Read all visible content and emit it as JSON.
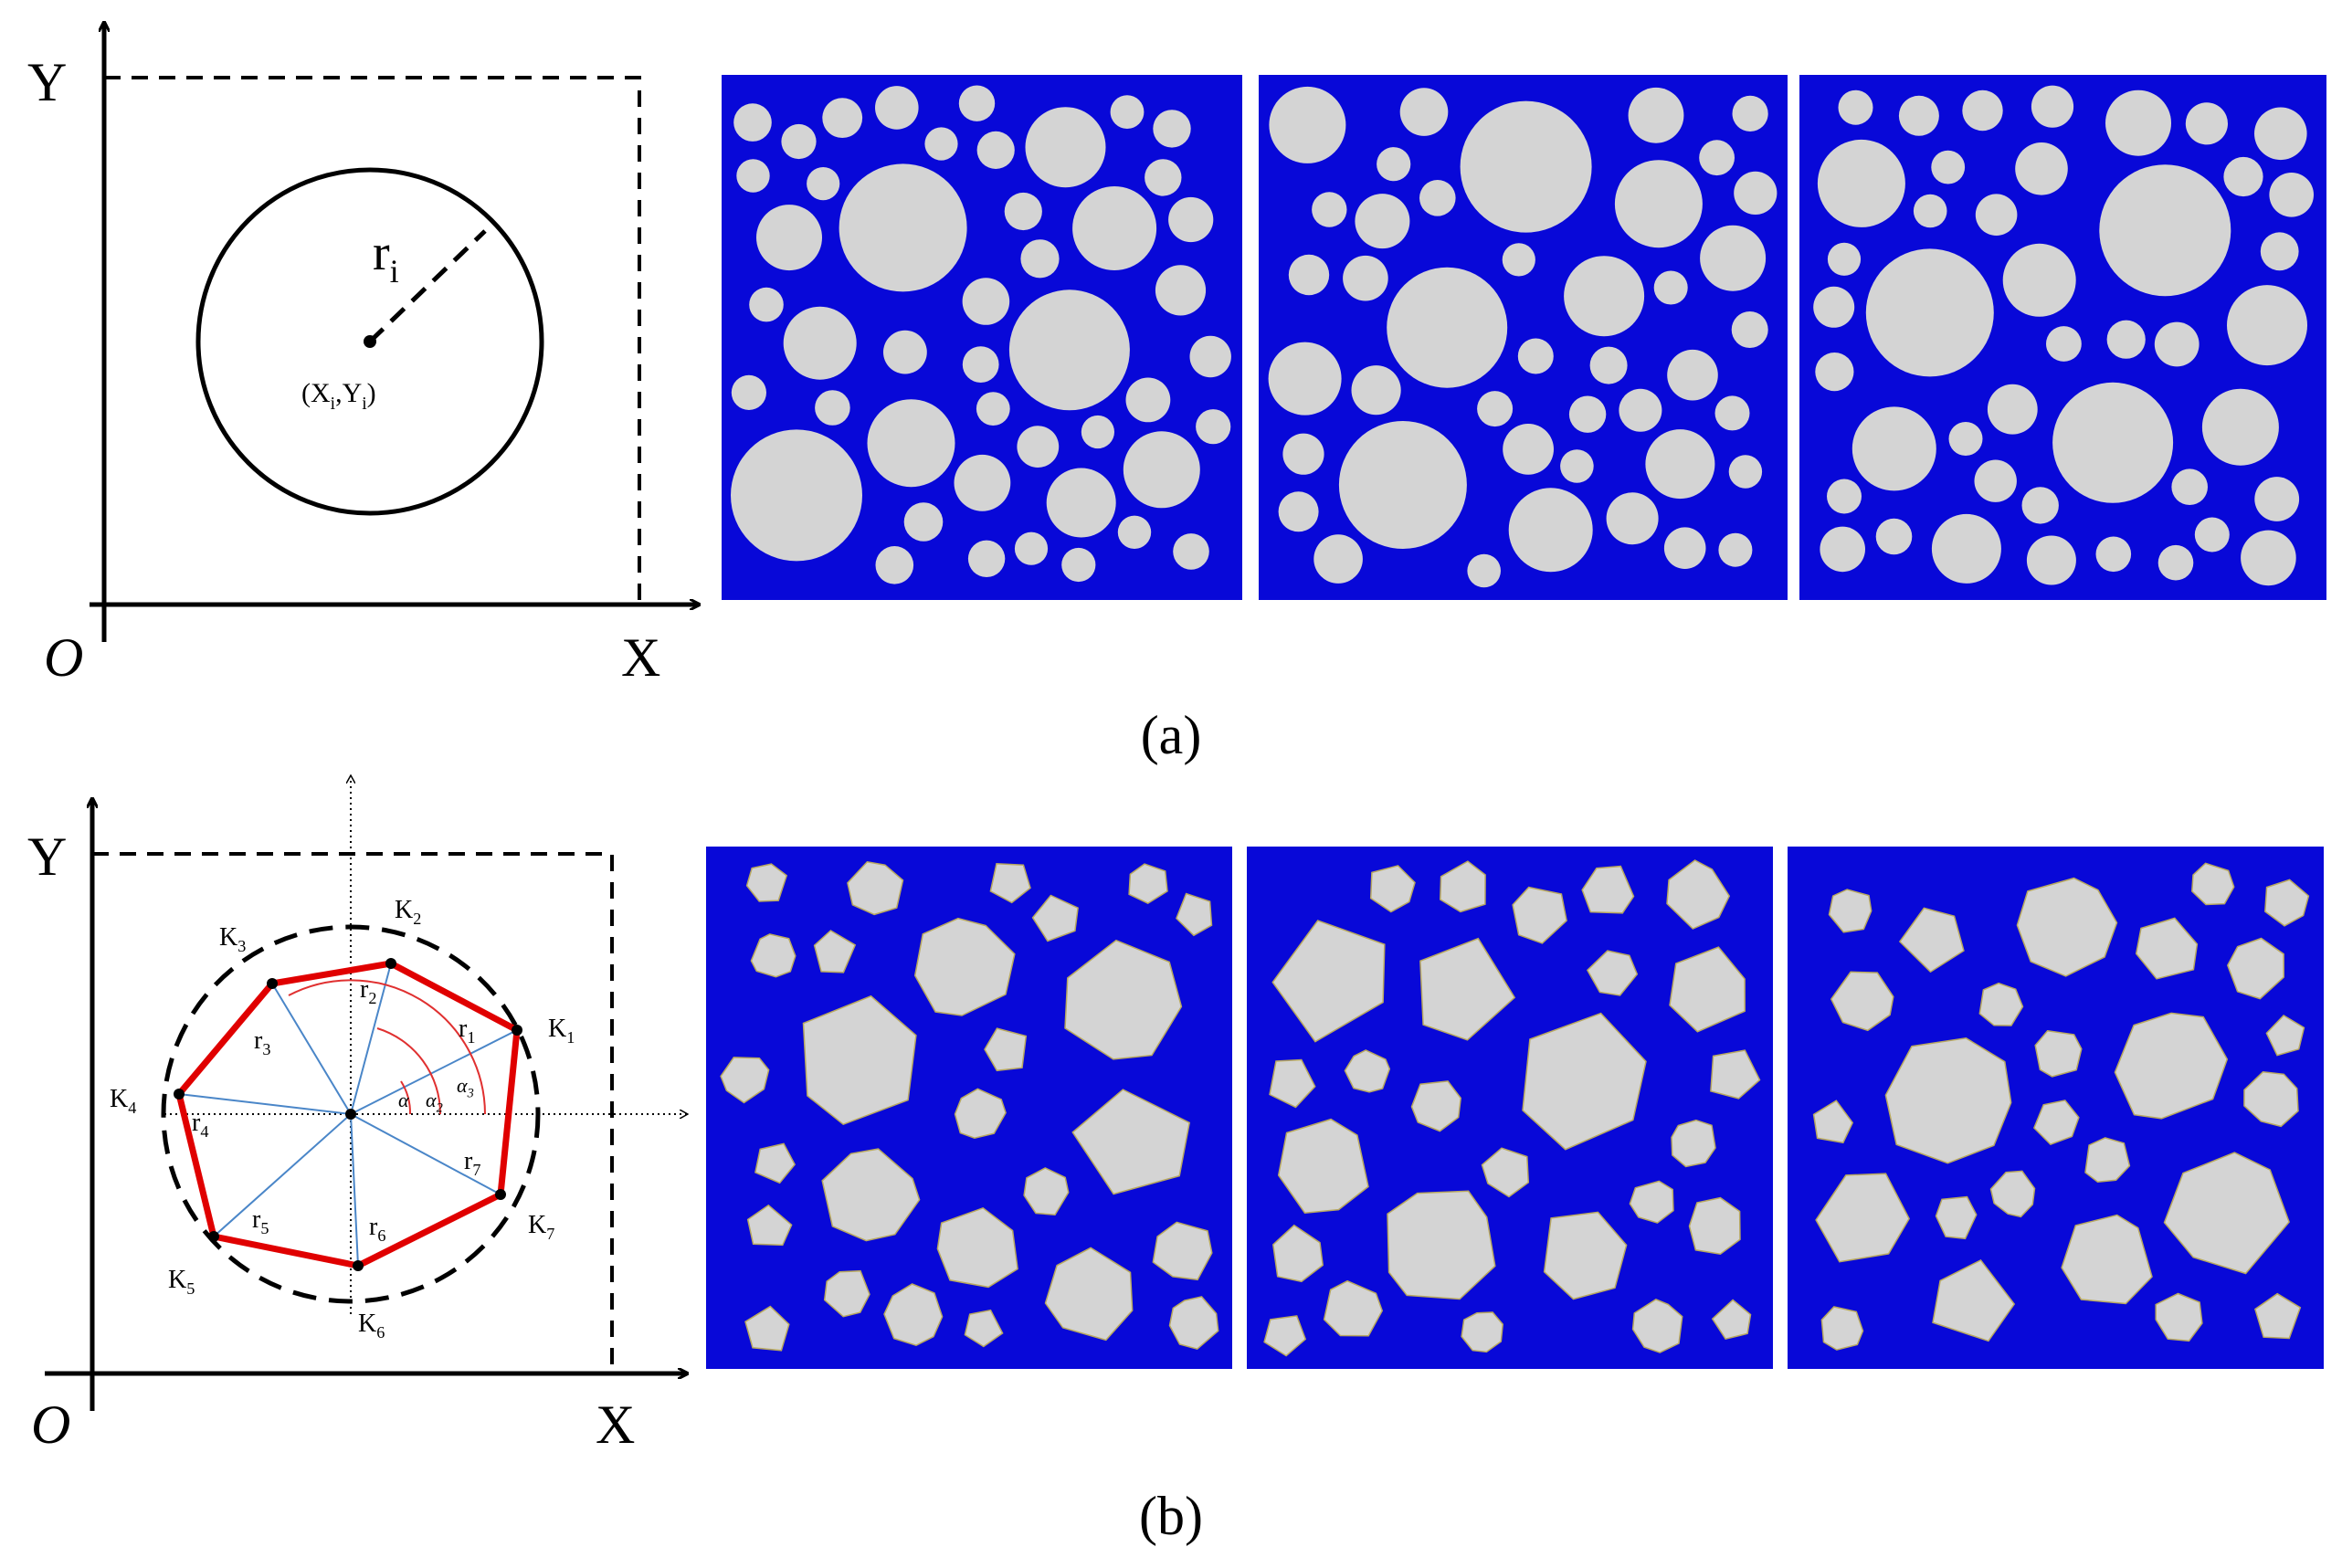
{
  "panel_a": {
    "axis_y": "Y",
    "axis_x": "X",
    "origin": "O",
    "radius_label": {
      "base": "r",
      "sub": "i"
    },
    "center_label": [
      "(X",
      "i",
      ",Y",
      "i",
      ")"
    ],
    "caption": "(a)"
  },
  "panel_b": {
    "axis_y": "Y",
    "axis_x": "X",
    "origin": "O",
    "vertices": [
      {
        "base": "K",
        "sub": "1"
      },
      {
        "base": "K",
        "sub": "2"
      },
      {
        "base": "K",
        "sub": "3"
      },
      {
        "base": "K",
        "sub": "4"
      },
      {
        "base": "K",
        "sub": "5"
      },
      {
        "base": "K",
        "sub": "6"
      },
      {
        "base": "K",
        "sub": "7"
      }
    ],
    "radii": [
      {
        "base": "r",
        "sub": "1"
      },
      {
        "base": "r",
        "sub": "2"
      },
      {
        "base": "r",
        "sub": "3"
      },
      {
        "base": "r",
        "sub": "4"
      },
      {
        "base": "r",
        "sub": "5"
      },
      {
        "base": "r",
        "sub": "6"
      },
      {
        "base": "r",
        "sub": "7"
      }
    ],
    "angles": [
      {
        "base": "α"
      },
      {
        "base": "α",
        "sub": "2"
      },
      {
        "base": "α",
        "sub": "3"
      }
    ],
    "caption": "(b)"
  }
}
